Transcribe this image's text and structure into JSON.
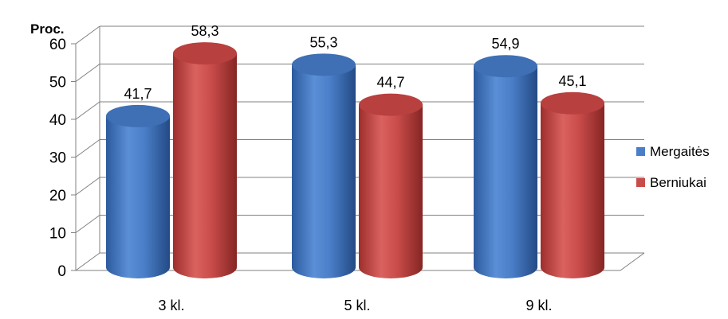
{
  "chart_data": {
    "type": "bar",
    "style": "3d-cylinder",
    "ylabel": "Proc.",
    "xlabel": "",
    "ylim": [
      0,
      60
    ],
    "yticks": [
      0,
      10,
      20,
      30,
      40,
      50,
      60
    ],
    "grid": true,
    "legend_position": "right",
    "categories": [
      "3 kl.",
      "5 kl.",
      "9 kl."
    ],
    "series": [
      {
        "name": "Mergaitės",
        "color": "#4a7ec8",
        "values": [
          41.7,
          55.3,
          54.9
        ],
        "labels": [
          "41,7",
          "55,3",
          "54,9"
        ]
      },
      {
        "name": "Berniukai",
        "color": "#c94c4a",
        "values": [
          58.3,
          44.7,
          45.1
        ],
        "labels": [
          "58,3",
          "44,7",
          "45,1"
        ]
      }
    ]
  }
}
